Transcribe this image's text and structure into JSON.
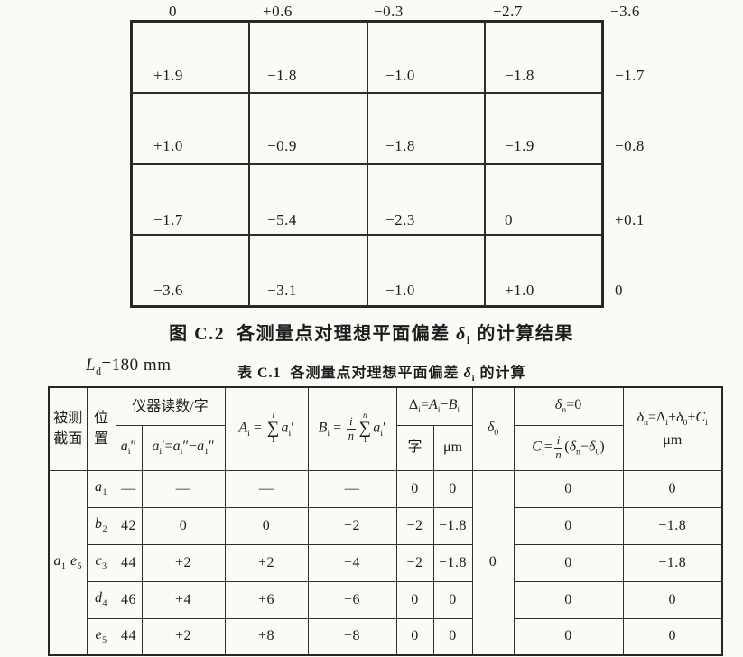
{
  "figure": {
    "caption_html": "图 C.2&nbsp;&nbsp;各测量点对理想平面偏差 <i>δ</i><sub>i</sub> 的计算结果",
    "grid_nodes": [
      [
        "0",
        "+0.6",
        "−0.3",
        "−2.7",
        "−3.6"
      ],
      [
        "+1.9",
        "−1.8",
        "−1.0",
        "−1.8",
        "−1.7"
      ],
      [
        "+1.0",
        "−0.9",
        "−1.8",
        "−1.9",
        "−0.8"
      ],
      [
        "−1.7",
        "−5.4",
        "−2.3",
        "0",
        "+0.1"
      ],
      [
        "−3.6",
        "−3.1",
        "−1.0",
        "+1.0",
        "0"
      ]
    ]
  },
  "subtitle": {
    "ld_html": "<i>L</i><sub>d</sub>=180 mm",
    "table_title_html": "表 C.1&nbsp;&nbsp;各测量点对理想平面偏差 <b><i>δ</i><sub>i</sub></b> 的计算"
  },
  "table": {
    "header": {
      "section_html": "被测<br>截面",
      "position_html": "位<br>置",
      "reading_group": "仪器读数/字",
      "a_second_html": "<i>a</i><sub>i</sub>″",
      "a_prime_html": "<i>a</i><sub>i</sub>′=<i>a</i><sub>i</sub>″−<i>a</i><sub>1</sub>″",
      "Ai_html": "<i>A</i><sub>i</sub> = <span class=\"sum\"><span class=\"lim\"><i>i</i></span><span class=\"sg\">∑</span><span class=\"lim\">1</span></span><i>a</i><sub>i</sub>′",
      "Bi_html": "<i>B</i><sub>i</sub> = <span class=\"frac\"><span class=\"num\"><i>i</i></span><span class=\"den\"><i>n</i></span></span><span class=\"sum\"><span class=\"lim\"><i>n</i></span><span class=\"sg\">∑</span><span class=\"lim\">1</span></span><i>a</i><sub>i</sub>′",
      "delta_group_html": "Δ<sub>i</sub>=<i>A</i><sub>i</sub>−<i>B</i><sub>i</sub>",
      "zi_label": "字",
      "um_label": "μm",
      "delta0_html": "<i>δ</i><sub>0</sub>",
      "dn_zero_html": "<i>δ</i><sub>n</sub>=0",
      "Ci_html": "<i>C</i><sub>i</sub>=<span class=\"frac\"><span class=\"num\"><i>i</i></span><span class=\"den\"><i>n</i></span></span>(<i>δ</i><sub>n</sub>−<i>δ</i><sub>0</sub>)",
      "dn_final_html": "<i>δ</i><sub>n</sub>=Δ<sub>i</sub>+<i>δ</i><sub>0</sub>+<i>C</i><sub>i</sub><br>μm"
    },
    "section_label_html": "<i>a</i><sub>1</sub> <i>e</i><sub>5</sub>",
    "delta0_value": "0",
    "rows": [
      {
        "pos_html": "<i>a</i><sub>1</sub>",
        "cells": [
          "—",
          "—",
          "—",
          "—",
          "0",
          "0",
          "0",
          "0"
        ]
      },
      {
        "pos_html": "<i>b</i><sub>2</sub>",
        "cells": [
          "42",
          "0",
          "0",
          "+2",
          "−2",
          "−1.8",
          "0",
          "−1.8"
        ]
      },
      {
        "pos_html": "<i>c</i><sub>3</sub>",
        "cells": [
          "44",
          "+2",
          "+2",
          "+4",
          "−2",
          "−1.8",
          "0",
          "−1.8"
        ]
      },
      {
        "pos_html": "<i>d</i><sub>4</sub>",
        "cells": [
          "46",
          "+4",
          "+6",
          "+6",
          "0",
          "0",
          "0",
          "0"
        ]
      },
      {
        "pos_html": "<i>e</i><sub>5</sub>",
        "cells": [
          "44",
          "+2",
          "+8",
          "+8",
          "0",
          "0",
          "0",
          "0"
        ]
      }
    ]
  }
}
